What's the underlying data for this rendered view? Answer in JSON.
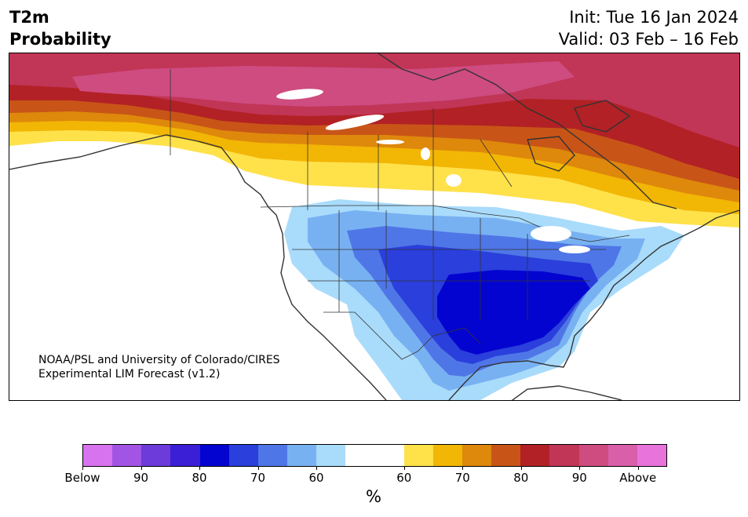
{
  "title": {
    "left_line1": "T2m",
    "left_line2": "Probability",
    "right_line1": "Init: Tue 16 Jan 2024",
    "right_line2": "Valid: 03 Feb – 16 Feb"
  },
  "credit": {
    "line1": "NOAA/PSL and University of Colorado/CIRES",
    "line2": "Experimental LIM Forecast (v1.2)"
  },
  "colorbar": {
    "unit": "%",
    "ticks": [
      "Below",
      "90",
      "80",
      "70",
      "60",
      "60",
      "70",
      "80",
      "90",
      "Above"
    ],
    "colors": [
      "#d773ee",
      "#a255e4",
      "#6c3bd9",
      "#3a1fd6",
      "#0404d0",
      "#2a3fdb",
      "#4f76e6",
      "#78b1f2",
      "#a9dbfb",
      "#ffffff",
      "#ffe14a",
      "#f2b605",
      "#de880c",
      "#c85517",
      "#b22125",
      "#c13557",
      "#ce4c80",
      "#d95fa9",
      "#e873db"
    ]
  },
  "map_colors": {
    "ocean": "#ffffff",
    "land": "#ffffff",
    "border": "#333333",
    "above_90": "#ce4c80",
    "above_85": "#c13557",
    "above_80": "#b22125",
    "above_75": "#c85517",
    "above_70": "#de880c",
    "above_65": "#f2b605",
    "above_60": "#ffe14a",
    "below_60": "#a9dbfb",
    "below_65": "#78b1f2",
    "below_70": "#4f76e6",
    "below_75": "#2a3fdb",
    "below_80": "#0404d0"
  }
}
